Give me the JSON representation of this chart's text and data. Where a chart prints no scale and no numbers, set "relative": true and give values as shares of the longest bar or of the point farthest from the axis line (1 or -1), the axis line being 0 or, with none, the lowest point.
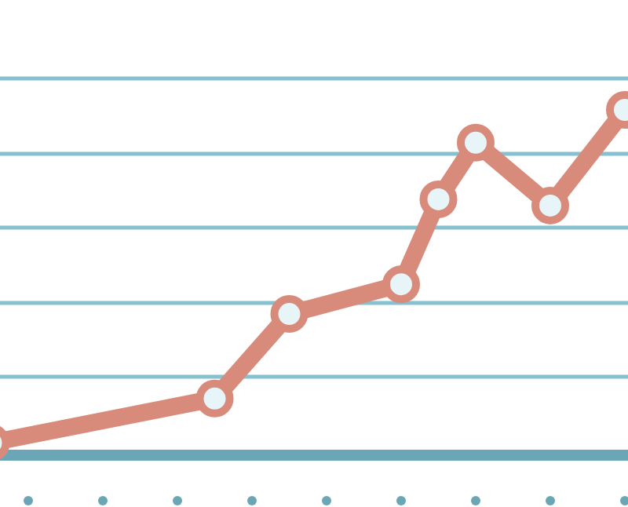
{
  "chart_data": {
    "type": "line",
    "relative": true,
    "marker": "circle",
    "categories": [
      null,
      null,
      null,
      null,
      null,
      null,
      null,
      null,
      null,
      null,
      null,
      null,
      null,
      null,
      null,
      null,
      null,
      null
    ],
    "ref_lines": [
      {
        "axis": "y",
        "value": 0.227,
        "color": "#86c1cf"
      },
      {
        "axis": "y",
        "value": 0.441,
        "color": "#86c1cf"
      },
      {
        "axis": "y",
        "value": 0.659,
        "color": "#86c1cf"
      },
      {
        "axis": "y",
        "value": 0.873,
        "color": "#86c1cf"
      },
      {
        "axis": "y",
        "value": 1.091,
        "color": "#86c1cf"
      }
    ],
    "series": [
      {
        "color": "#d98b7b",
        "values": [
          0.036,
          null,
          null,
          null,
          null,
          null,
          0.164,
          null,
          0.409,
          null,
          null,
          0.495,
          0.741,
          0.905,
          null,
          0.723,
          null,
          1.0
        ]
      }
    ]
  }
}
